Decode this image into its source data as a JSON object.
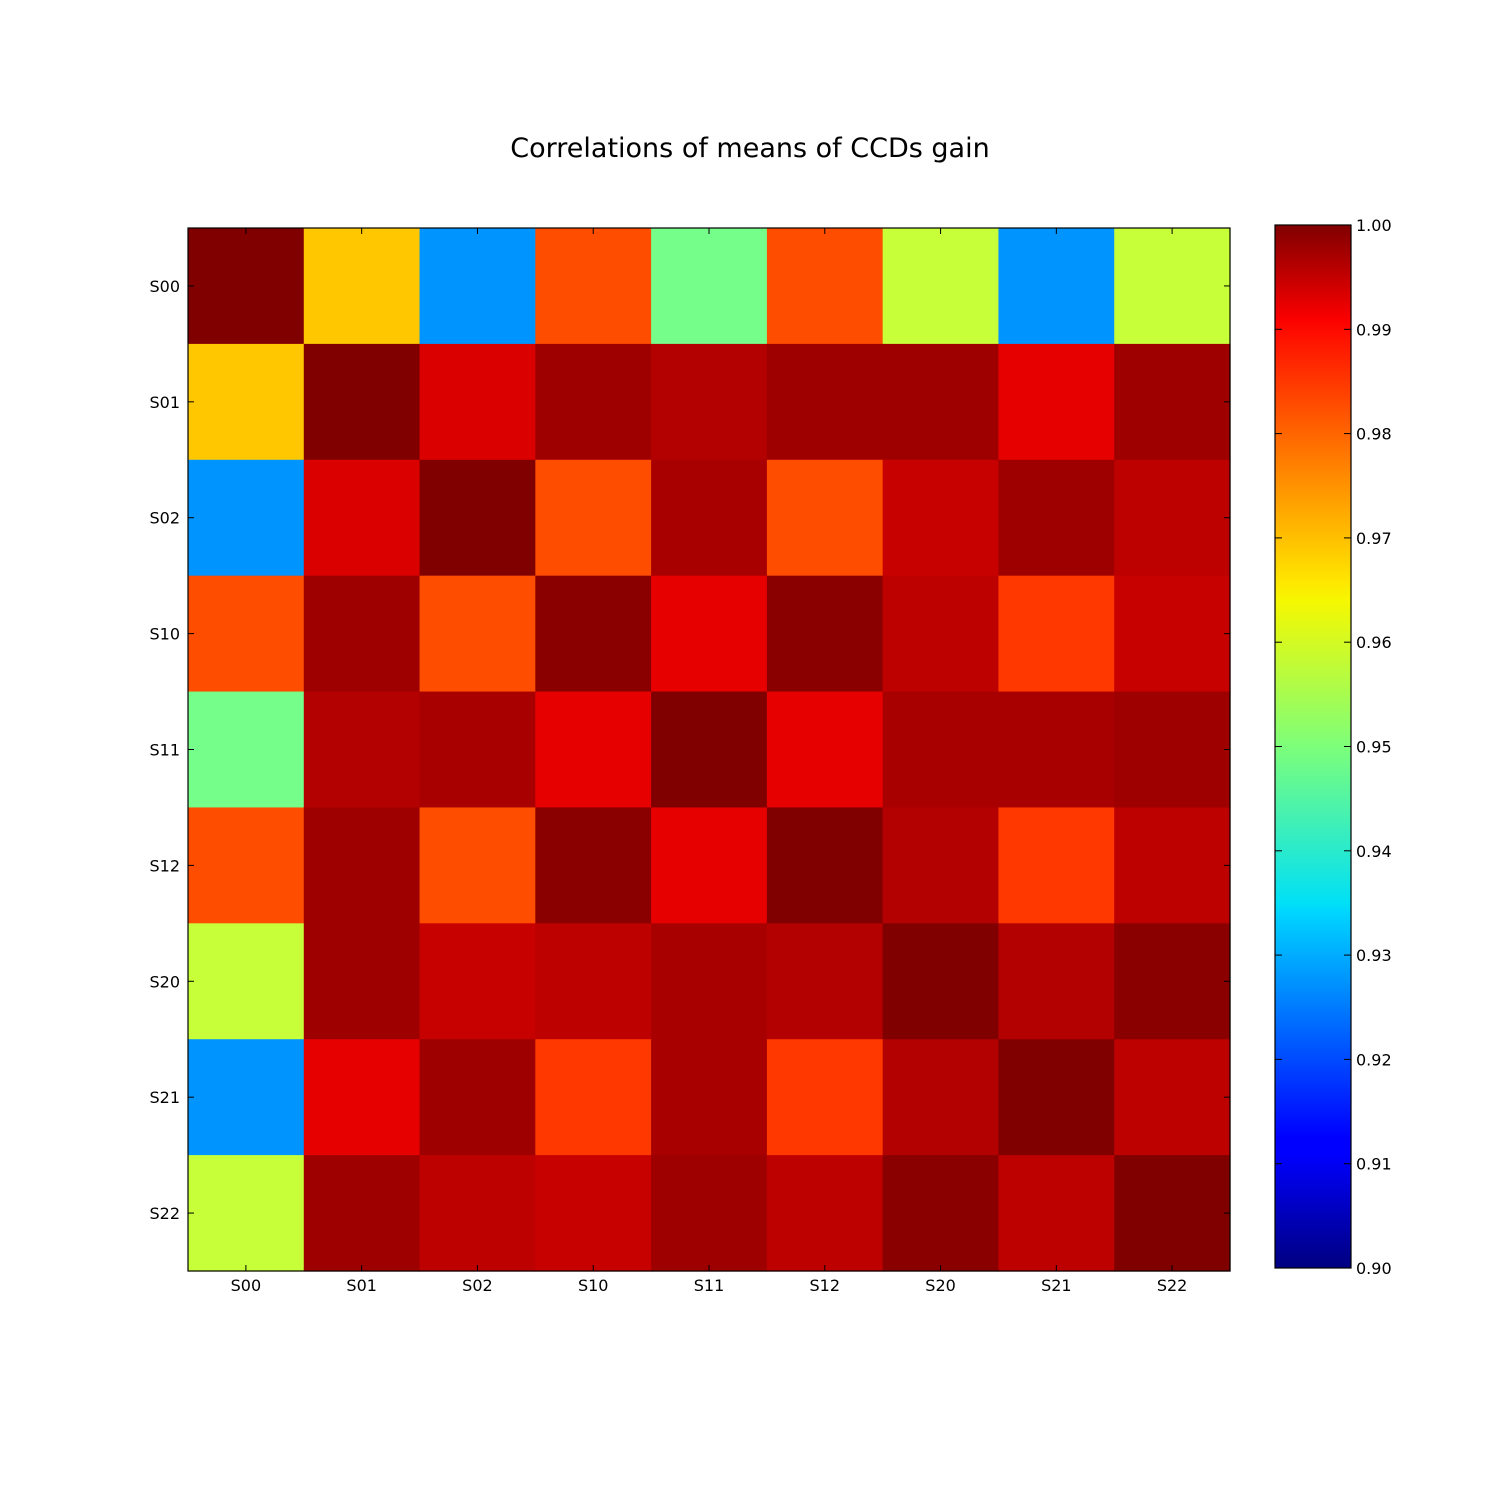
{
  "chart_data": {
    "type": "heatmap",
    "title": "Correlations of means of CCDs gain",
    "xlabel": "",
    "ylabel": "",
    "x_categories": [
      "S00",
      "S01",
      "S02",
      "S10",
      "S11",
      "S12",
      "S20",
      "S21",
      "S22"
    ],
    "y_categories": [
      "S00",
      "S01",
      "S02",
      "S10",
      "S11",
      "S12",
      "S20",
      "S21",
      "S22"
    ],
    "values": [
      [
        1.0,
        0.968,
        0.927,
        0.98,
        0.949,
        0.98,
        0.957,
        0.927,
        0.957
      ],
      [
        0.968,
        1.0,
        0.991,
        0.997,
        0.995,
        0.997,
        0.997,
        0.99,
        0.997
      ],
      [
        0.927,
        0.991,
        1.0,
        0.98,
        0.996,
        0.98,
        0.993,
        0.997,
        0.994
      ],
      [
        0.98,
        0.997,
        0.98,
        0.999,
        0.99,
        0.999,
        0.994,
        0.982,
        0.993
      ],
      [
        0.949,
        0.995,
        0.996,
        0.99,
        1.0,
        0.99,
        0.996,
        0.996,
        0.997
      ],
      [
        0.98,
        0.997,
        0.98,
        0.999,
        0.99,
        1.0,
        0.995,
        0.982,
        0.994
      ],
      [
        0.957,
        0.997,
        0.993,
        0.994,
        0.996,
        0.995,
        1.0,
        0.995,
        0.999
      ],
      [
        0.927,
        0.99,
        0.997,
        0.982,
        0.996,
        0.982,
        0.995,
        1.0,
        0.994
      ],
      [
        0.957,
        0.997,
        0.994,
        0.993,
        0.997,
        0.994,
        0.999,
        0.994,
        1.0
      ]
    ],
    "colormap": "jet",
    "colorbar": {
      "min": 0.9,
      "max": 1.0,
      "ticks": [
        "0.90",
        "0.91",
        "0.92",
        "0.93",
        "0.94",
        "0.95",
        "0.96",
        "0.97",
        "0.98",
        "0.99",
        "1.00"
      ]
    },
    "grid": false,
    "legend": "colorbar-right"
  }
}
